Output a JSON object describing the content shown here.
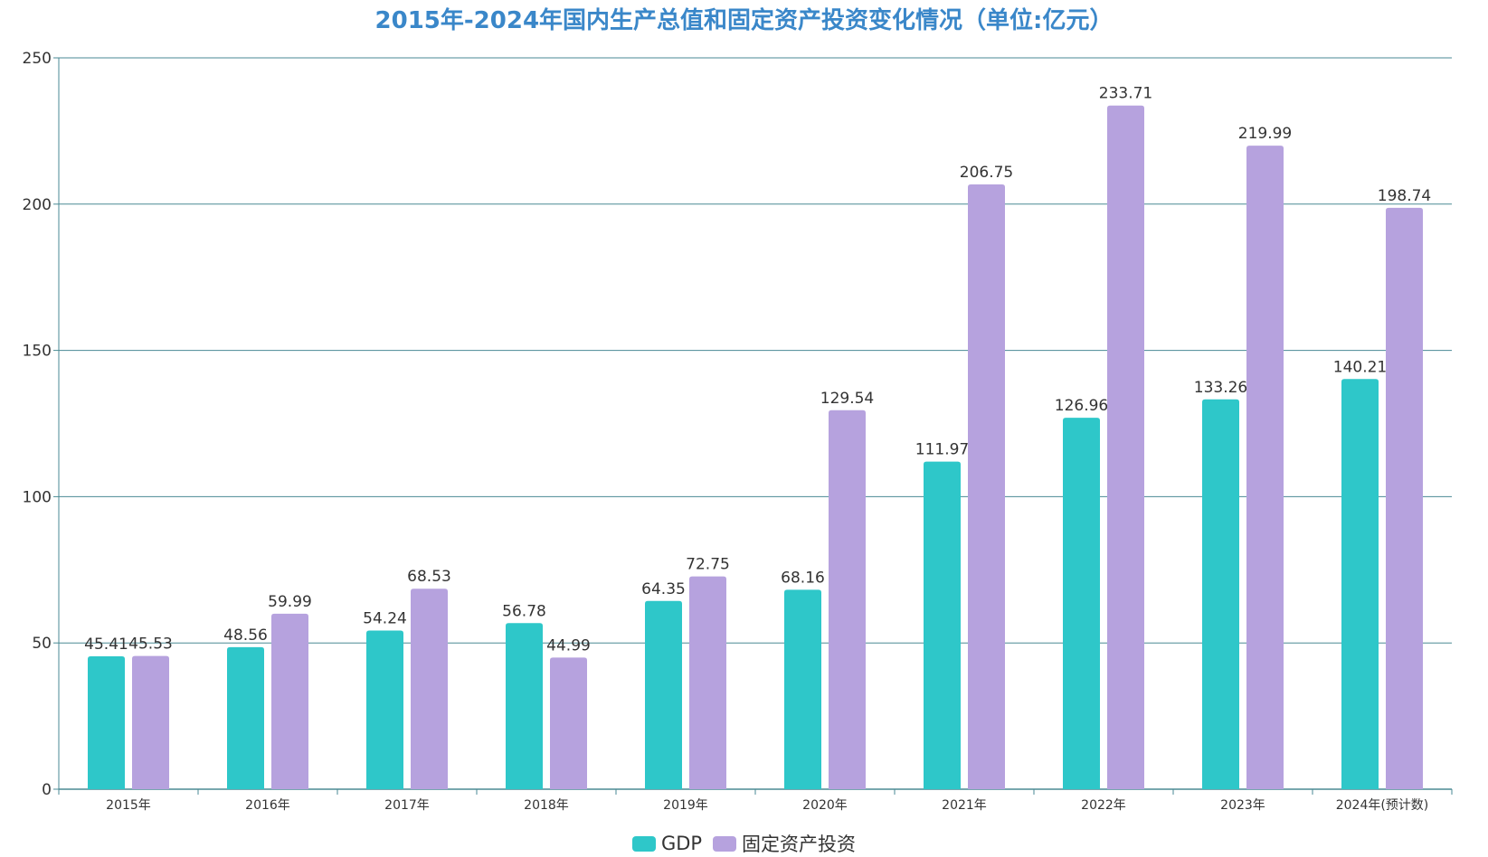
{
  "chart_data": {
    "type": "bar",
    "title": "2015年-2024年国内生产总值和固定资产投资变化情况（单位:亿元）",
    "categories": [
      "2015年",
      "2016年",
      "2017年",
      "2018年",
      "2019年",
      "2020年",
      "2021年",
      "2022年",
      "2023年",
      "2024年(预计数)"
    ],
    "series": [
      {
        "name": "GDP",
        "color": "#2ec7c9",
        "values": [
          45.41,
          48.56,
          54.24,
          56.78,
          64.35,
          68.16,
          111.97,
          126.96,
          133.26,
          140.21
        ]
      },
      {
        "name": "固定资产投资",
        "color": "#b6a2de",
        "values": [
          45.53,
          59.99,
          68.53,
          44.99,
          72.75,
          129.54,
          206.75,
          233.71,
          219.99,
          198.74
        ]
      }
    ],
    "value_labels": [
      [
        "45.41",
        "48.56",
        "54.24",
        "56.78",
        "64.35",
        "68.16",
        "111.97",
        "126.96",
        "133.26",
        "140.21"
      ],
      [
        "45.53",
        "59.99",
        "68.53",
        "44.99",
        "72.75",
        "129.54",
        "206.75",
        "233.71",
        "219.99",
        "198.74"
      ]
    ],
    "xlabel": "",
    "ylabel": "",
    "ylim": [
      0,
      250
    ],
    "yticks": [
      "0",
      "50",
      "100",
      "150",
      "200",
      "250"
    ],
    "grid": true,
    "legend_position": "bottom-center",
    "axis_color": "#4a8a94",
    "title_color": "#3a87c9"
  }
}
